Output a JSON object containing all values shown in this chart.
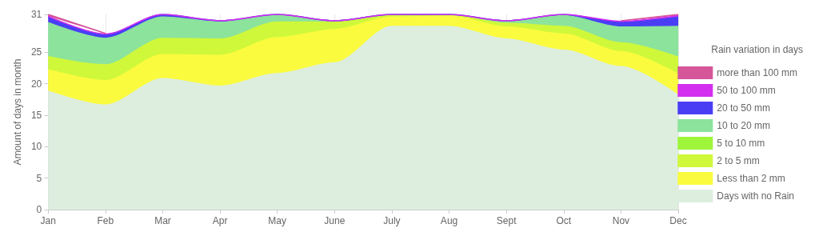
{
  "chart_data": {
    "type": "area",
    "stacked": true,
    "ylabel": "Amount of days in month",
    "legend_title": "Rain variation in days",
    "legend": "right",
    "grid": "x",
    "categories": [
      "Jan",
      "Feb",
      "Mar",
      "Apr",
      "May",
      "June",
      "July",
      "Aug",
      "Sept",
      "Oct",
      "Nov",
      "Dec"
    ],
    "ylim": [
      0,
      31
    ],
    "yticks": [
      0,
      5,
      10,
      15,
      20,
      25,
      31
    ],
    "series": [
      {
        "name": "Days with no Rain",
        "color": "#ddeedf",
        "values": [
          18.8,
          16.6,
          20.8,
          19.6,
          21.6,
          23.3,
          29.1,
          29.1,
          27.1,
          25.3,
          22.7,
          18.2
        ]
      },
      {
        "name": "Less than 2 mm",
        "color": "#fafb3e",
        "values": [
          3.4,
          3.9,
          3.8,
          4.9,
          5.7,
          5.3,
          1.5,
          1.7,
          1.9,
          2.6,
          2.4,
          3.3
        ]
      },
      {
        "name": "2 to 5 mm",
        "color": "#cff83a",
        "values": [
          2.1,
          2.5,
          2.6,
          2.6,
          2.5,
          1.2,
          0.2,
          0.1,
          0.6,
          1.2,
          1.4,
          2.7
        ]
      },
      {
        "name": "5 to 10 mm",
        "color": "#9ef53a",
        "values": [
          null,
          null,
          null,
          null,
          null,
          null,
          null,
          null,
          null,
          null,
          null,
          null
        ]
      },
      {
        "name": "10 to 20 mm",
        "color": "#8be39c",
        "values": [
          5.4,
          4.2,
          3.4,
          2.7,
          1.2,
          0.2,
          0.2,
          0.1,
          0.4,
          1.7,
          2.5,
          4.9
        ]
      },
      {
        "name": "20 to 50 mm",
        "color": "#4a3ef5",
        "values": [
          0.9,
          0.6,
          0.4,
          0.2,
          0,
          0,
          0,
          0,
          0,
          0.2,
          0.8,
          1.5
        ]
      },
      {
        "name": "50 to 100 mm",
        "color": "#d42ef0",
        "values": [
          0.1,
          0.1,
          0,
          0,
          0,
          0,
          0,
          0,
          0,
          0,
          0.1,
          0.2
        ]
      },
      {
        "name": "more than 100 mm",
        "color": "#d6569a",
        "values": [
          0.3,
          0.1,
          null,
          null,
          null,
          null,
          null,
          null,
          null,
          null,
          0.1,
          0.2
        ]
      }
    ]
  }
}
